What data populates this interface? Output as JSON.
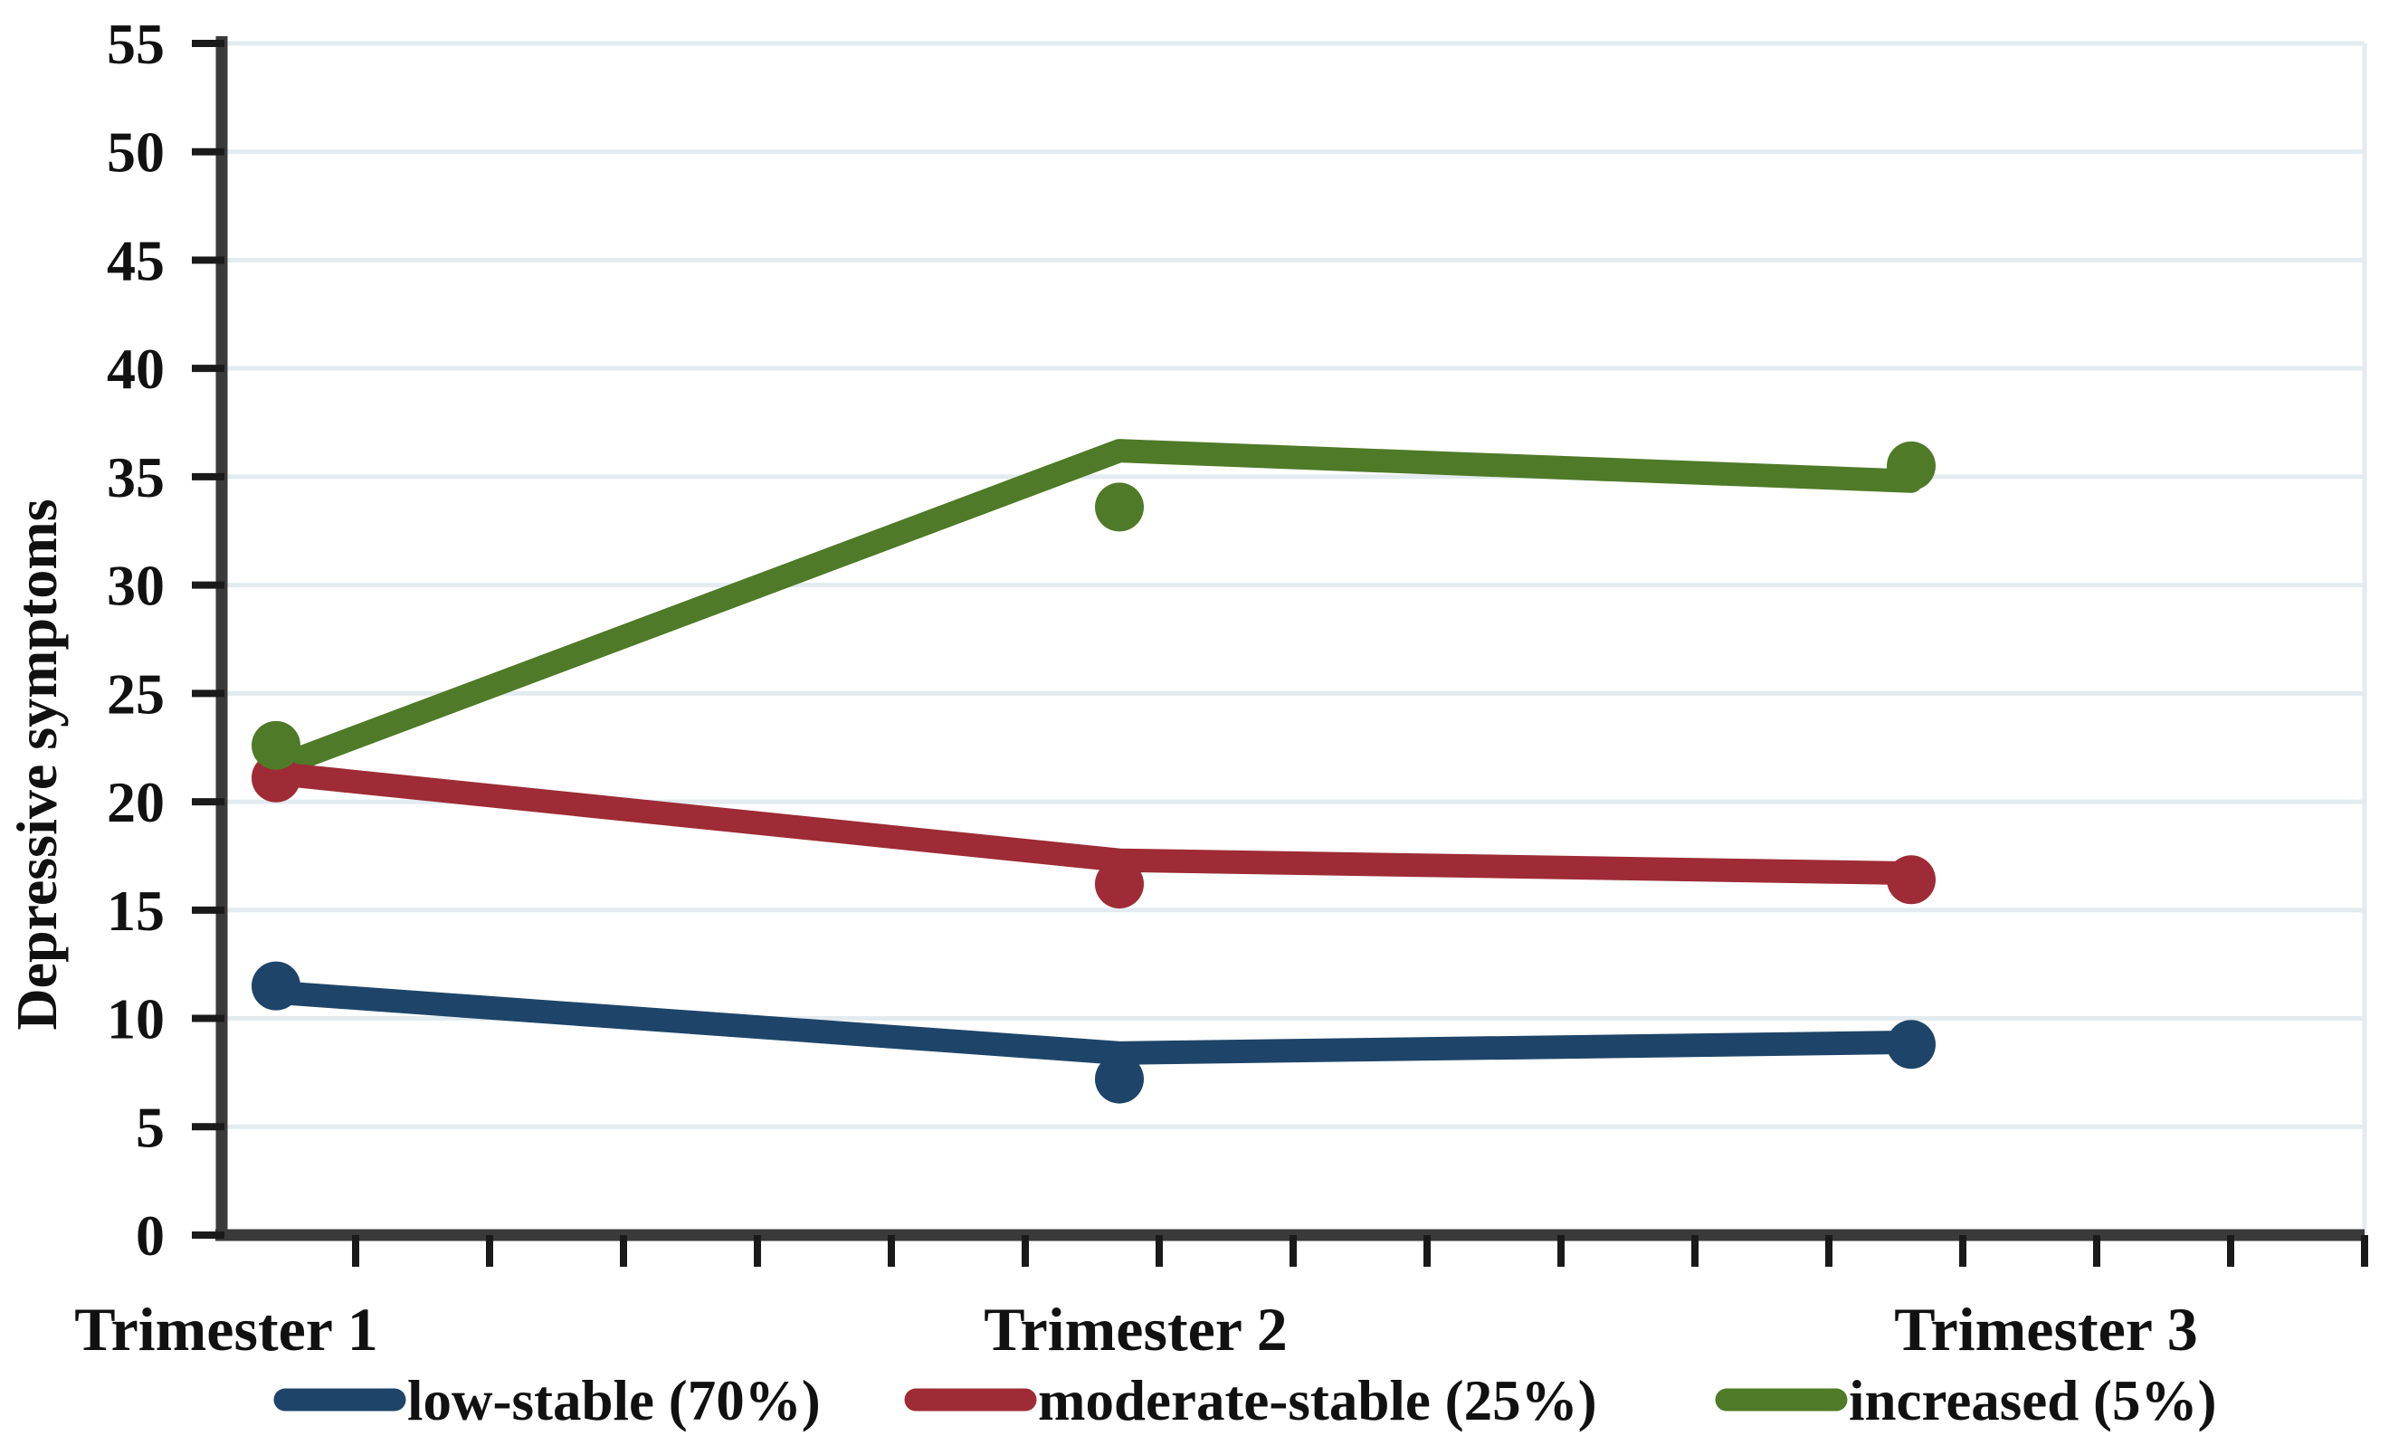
{
  "chart_data": {
    "type": "line",
    "title": "",
    "xlabel": "",
    "ylabel": "Depressive symptoms",
    "categories": [
      "Trimester 1",
      "Trimester 2",
      "Trimester 3"
    ],
    "ylim": [
      0,
      55
    ],
    "ytick_step": 5,
    "yticks": [
      0,
      5,
      10,
      15,
      20,
      25,
      30,
      35,
      40,
      45,
      50,
      55
    ],
    "grid": "horizontal-only",
    "legend_position": "bottom",
    "series": [
      {
        "name": "low-stable (70%)",
        "color": "#1e4569",
        "line_values": [
          11.2,
          8.4,
          8.9
        ],
        "marker_values": [
          11.5,
          7.2,
          8.8
        ]
      },
      {
        "name": "moderate-stable (25%)",
        "color": "#9e2b35",
        "line_values": [
          21.3,
          17.3,
          16.7
        ],
        "marker_values": [
          21.1,
          16.2,
          16.4
        ]
      },
      {
        "name": "increased (5%)",
        "color": "#4f7a28",
        "line_values": [
          21.6,
          36.2,
          34.8
        ],
        "marker_values": [
          22.6,
          33.6,
          35.5
        ]
      }
    ]
  },
  "axes": {
    "y_title": "Depressive symptoms",
    "y_tick_labels": [
      "0",
      "5",
      "10",
      "15",
      "20",
      "25",
      "30",
      "35",
      "40",
      "45",
      "50",
      "55"
    ],
    "x_tick_labels": [
      "Trimester 1",
      "Trimester 2",
      "Trimester 3"
    ]
  },
  "legend": {
    "items": [
      {
        "label": "low-stable (70%)",
        "color": "#1e4569"
      },
      {
        "label": "moderate-stable (25%)",
        "color": "#9e2b35"
      },
      {
        "label": "increased (5%)",
        "color": "#4f7a28"
      }
    ]
  },
  "colors": {
    "axis_line": "#3a3a3a",
    "tick": "#1a1a1a",
    "gridline": "#e2ebf0",
    "text": "#111111",
    "background": "#ffffff"
  }
}
